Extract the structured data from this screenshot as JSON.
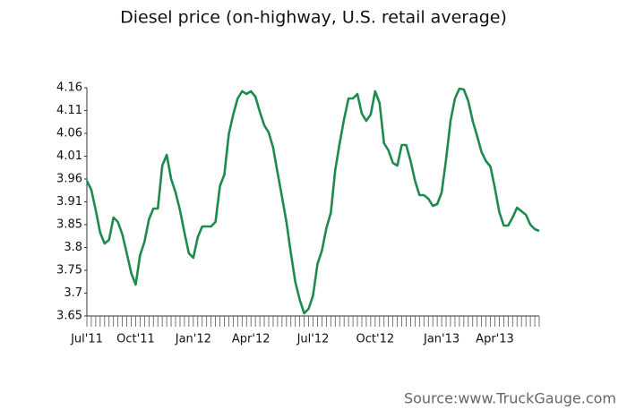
{
  "chart_data": {
    "type": "line",
    "title": "Diesel price (on-highway, U.S. retail average)",
    "source": "Source:www.TruckGauge.com",
    "categories": [
      "Jul'11",
      null,
      null,
      null,
      null,
      null,
      null,
      null,
      null,
      null,
      null,
      "Oct'11",
      null,
      null,
      null,
      null,
      null,
      null,
      null,
      null,
      null,
      null,
      null,
      null,
      "Jan'12",
      null,
      null,
      null,
      null,
      null,
      null,
      null,
      null,
      null,
      null,
      null,
      null,
      "Apr'12",
      null,
      null,
      null,
      null,
      null,
      null,
      null,
      null,
      null,
      null,
      null,
      null,
      null,
      "Jul'12",
      null,
      null,
      null,
      null,
      null,
      null,
      null,
      null,
      null,
      null,
      null,
      null,
      null,
      "Oct'12",
      null,
      null,
      null,
      null,
      null,
      null,
      null,
      null,
      null,
      null,
      null,
      null,
      null,
      null,
      "Jan'13",
      null,
      null,
      null,
      null,
      null,
      null,
      null,
      null,
      null,
      null,
      null,
      "Apr'13",
      null,
      null,
      null,
      null,
      null,
      null,
      null,
      null,
      null,
      null
    ],
    "series": [
      {
        "name": "Diesel price",
        "color": "#1e8a4e",
        "values": [
          3.952,
          3.932,
          3.886,
          3.836,
          3.812,
          3.82,
          3.87,
          3.86,
          3.832,
          3.79,
          3.746,
          3.72,
          3.786,
          3.816,
          3.866,
          3.89,
          3.89,
          3.986,
          4.01,
          3.956,
          3.926,
          3.886,
          3.836,
          3.79,
          3.78,
          3.826,
          3.85,
          3.85,
          3.85,
          3.86,
          3.94,
          3.966,
          4.056,
          4.1,
          4.136,
          4.152,
          4.146,
          4.152,
          4.14,
          4.106,
          4.076,
          4.06,
          4.026,
          3.97,
          3.916,
          3.86,
          3.79,
          3.726,
          3.686,
          3.656,
          3.666,
          3.696,
          3.766,
          3.796,
          3.846,
          3.88,
          3.976,
          4.036,
          4.09,
          4.136,
          4.136,
          4.146,
          4.102,
          4.086,
          4.1,
          4.152,
          4.126,
          4.036,
          4.02,
          3.992,
          3.986,
          4.032,
          4.032,
          3.996,
          3.952,
          3.92,
          3.92,
          3.912,
          3.896,
          3.9,
          3.926,
          4.0,
          4.086,
          4.136,
          4.158,
          4.156,
          4.13,
          4.086,
          4.052,
          4.016,
          3.996,
          3.984,
          3.936,
          3.882,
          3.852,
          3.852,
          3.87,
          3.892,
          3.884,
          3.876,
          3.854,
          3.844,
          3.84
        ]
      }
    ],
    "ylim": [
      3.65,
      4.16
    ],
    "yticks": [
      3.65,
      {
        "value": 3.701,
        "label": "3.7"
      },
      {
        "value": 3.752,
        "label": "3.75"
      },
      {
        "value": 3.803,
        "label": "3.8"
      },
      {
        "value": 3.854,
        "label": "3.85"
      },
      {
        "value": 3.905,
        "label": "3.91"
      },
      {
        "value": 3.956,
        "label": "3.96"
      },
      {
        "value": 4.007,
        "label": "4.01"
      },
      {
        "value": 4.058,
        "label": "4.06"
      },
      {
        "value": 4.109,
        "label": "4.11"
      },
      4.16
    ],
    "grid": false
  }
}
